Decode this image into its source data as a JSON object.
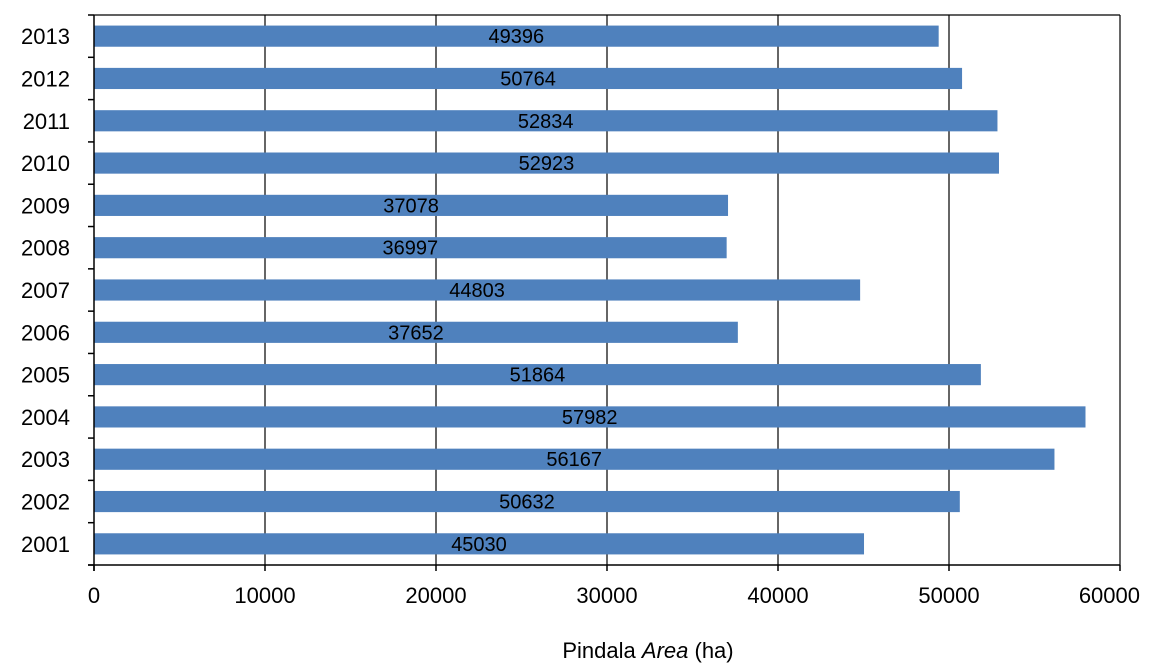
{
  "chart_data": {
    "type": "bar",
    "orientation": "horizontal",
    "categories": [
      "2001",
      "2002",
      "2003",
      "2004",
      "2005",
      "2006",
      "2007",
      "2008",
      "2009",
      "2010",
      "2011",
      "2012",
      "2013"
    ],
    "values": [
      45030,
      50632,
      56167,
      57982,
      51864,
      37652,
      44803,
      36997,
      37078,
      52923,
      52834,
      50764,
      49396
    ],
    "data_labels": [
      "45030",
      "50632",
      "56167",
      "57982",
      "51864",
      "37652",
      "44803",
      "36997",
      "37078",
      "52923",
      "52834",
      "50764",
      "49396"
    ],
    "xlim": [
      0,
      60000
    ],
    "x_ticks": [
      "0",
      "10000",
      "20000",
      "30000",
      "40000",
      "50000",
      "60000"
    ],
    "x_tick_values": [
      0,
      10000,
      20000,
      30000,
      40000,
      50000,
      60000
    ],
    "xlabel": {
      "prefix": "Pindala ",
      "italic": "Area",
      "suffix": " (ha)"
    },
    "ylabel": "",
    "title": "",
    "grid": "vertical",
    "legend": "none",
    "bar_color": "#4F81BD"
  }
}
